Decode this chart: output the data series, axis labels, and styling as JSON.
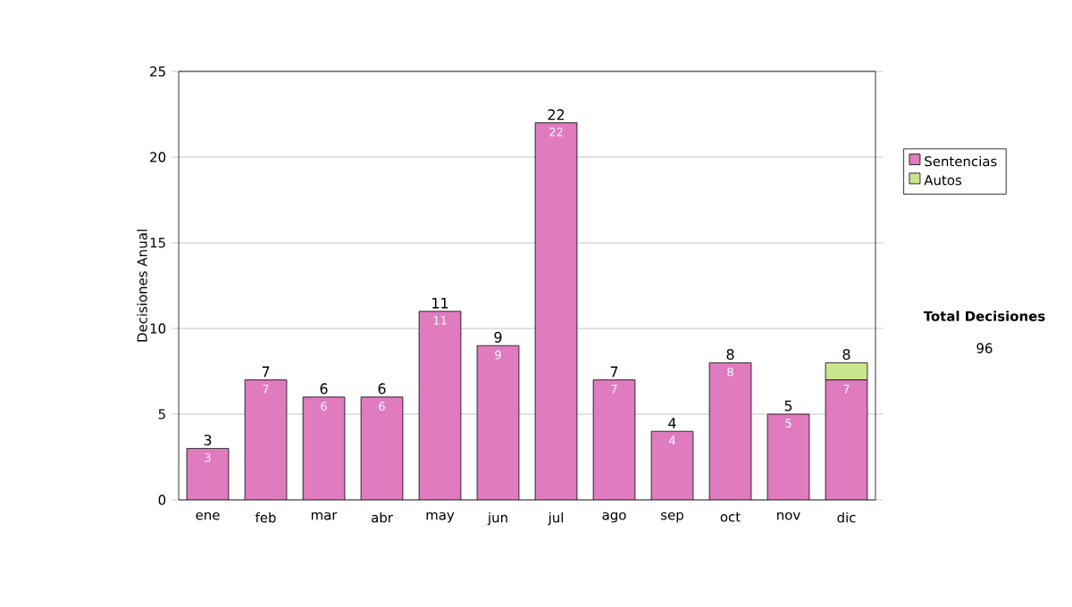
{
  "chart_data": {
    "type": "bar",
    "stacked": true,
    "ylabel": "Decisiones Anual",
    "categories": [
      "ene",
      "feb",
      "mar",
      "abr",
      "may",
      "jun",
      "jul",
      "ago",
      "sep",
      "oct",
      "nov",
      "dic"
    ],
    "series": [
      {
        "name": "Sentencias",
        "color": "#e07bc0",
        "values": [
          3,
          7,
          6,
          6,
          11,
          9,
          22,
          7,
          4,
          8,
          5,
          7
        ],
        "value_labels": [
          "3",
          "7",
          "6",
          "6",
          "11",
          "9",
          "22",
          "7",
          "4",
          "8",
          "5",
          "7"
        ]
      },
      {
        "name": "Autos",
        "color": "#c8e68c",
        "values": [
          0,
          0,
          0,
          0,
          0,
          0,
          0,
          0,
          0,
          0,
          0,
          1
        ]
      }
    ],
    "totals": [
      "3",
      "7",
      "6",
      "6",
      "11",
      "9",
      "22",
      "7",
      "4",
      "8",
      "5",
      "8"
    ],
    "ylim": [
      0,
      25
    ],
    "yticks": [
      0,
      5,
      10,
      15,
      20,
      25
    ],
    "grid": "y",
    "legend": "right",
    "annotations": [
      "Total Decisiones",
      "96"
    ]
  }
}
